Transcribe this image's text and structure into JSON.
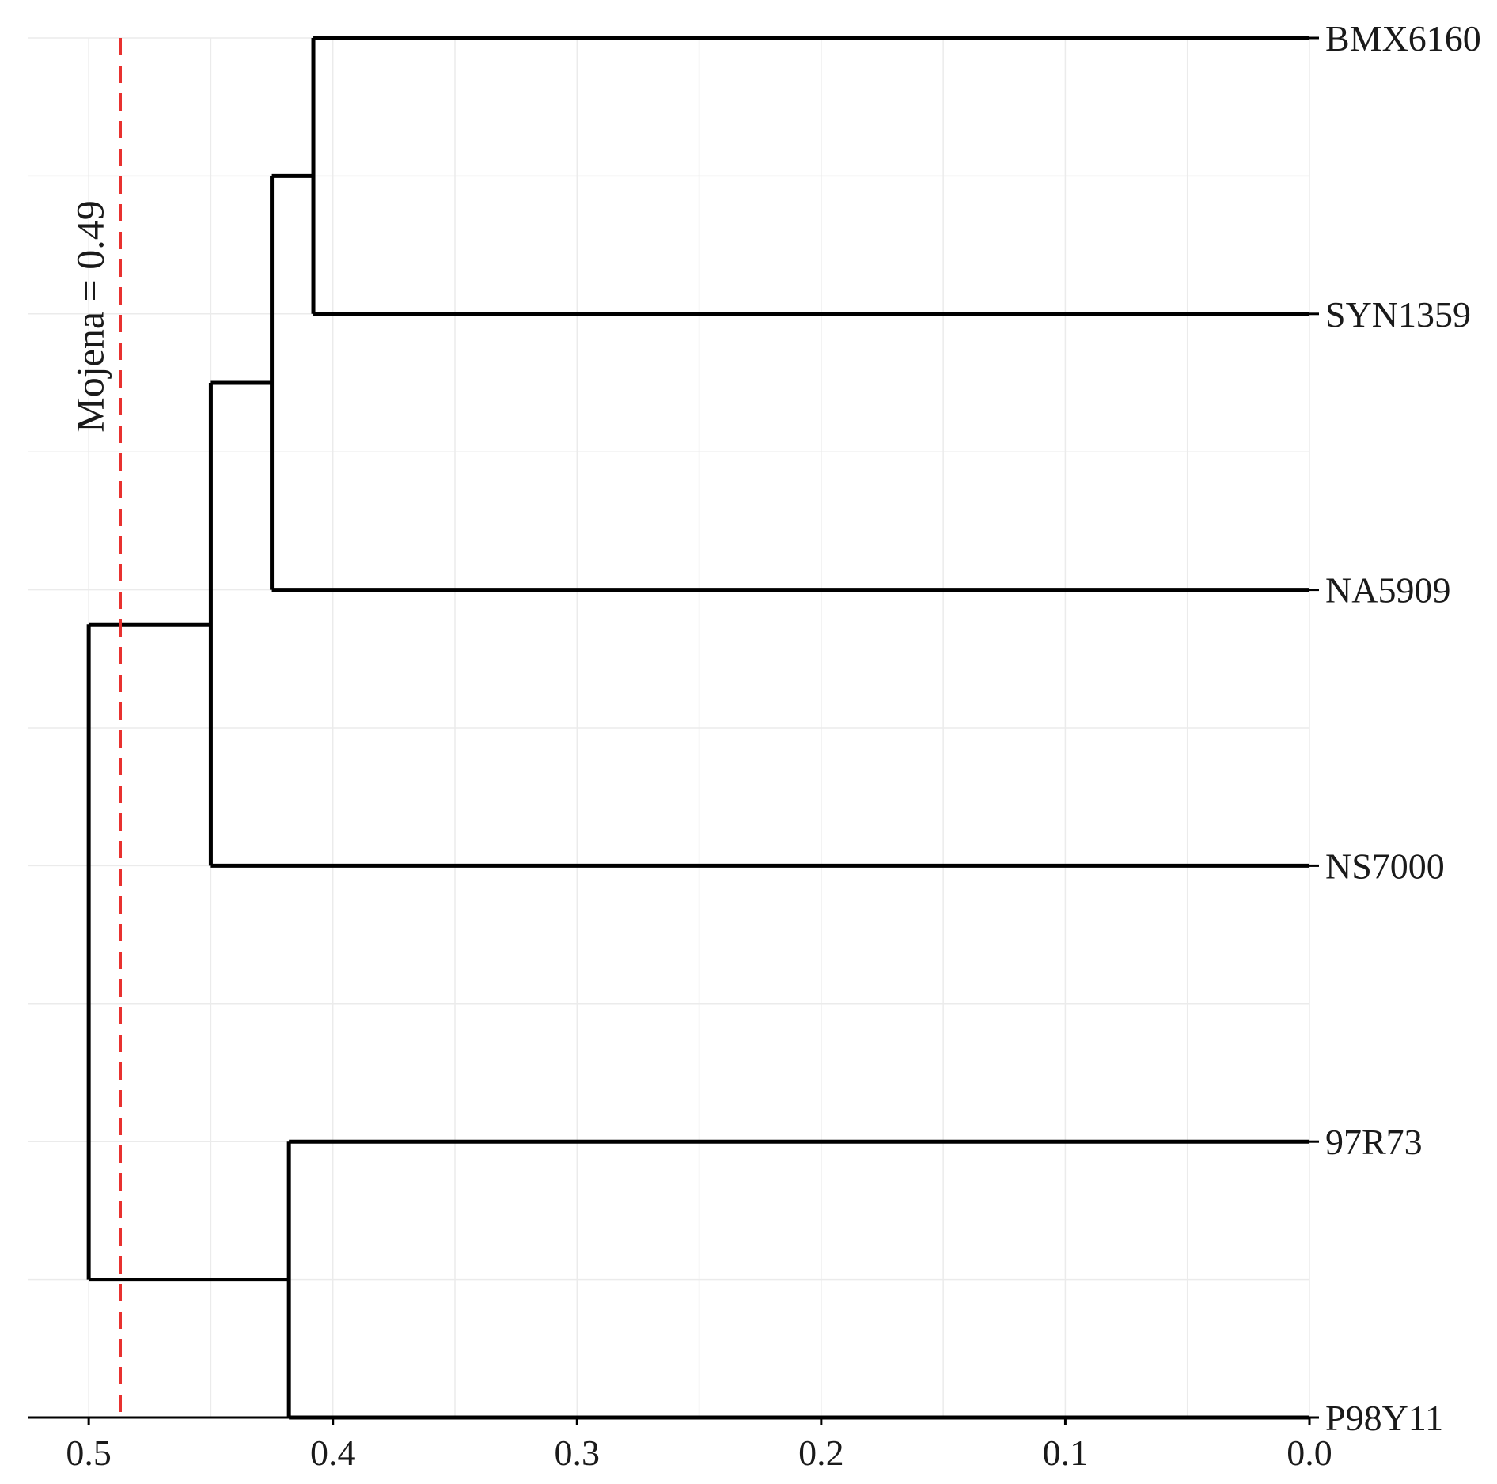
{
  "chart_data": {
    "type": "dendrogram",
    "orientation": "horizontal",
    "x_axis": {
      "ticks": [
        0.5,
        0.4,
        0.3,
        0.2,
        0.1,
        0.0
      ],
      "tick_labels": [
        "0.5",
        "0.4",
        "0.3",
        "0.2",
        "0.1",
        "0.0"
      ],
      "xlim": [
        0.525,
        0.0
      ],
      "reversed": true
    },
    "leaves": [
      "BMX6160",
      "SYN1359",
      "NA5909",
      "NS7000",
      "97R73",
      "P98Y11"
    ],
    "merges": [
      {
        "id": "c1",
        "left": "BMX6160",
        "right": "SYN1359",
        "height": 0.408
      },
      {
        "id": "c2",
        "left": "c1",
        "right": "NA5909",
        "height": 0.425
      },
      {
        "id": "c3",
        "left": "c2",
        "right": "NS7000",
        "height": 0.45
      },
      {
        "id": "c4",
        "left": "97R73",
        "right": "P98Y11",
        "height": 0.418
      },
      {
        "id": "c5",
        "left": "c3",
        "right": "c4",
        "height": 0.5
      }
    ],
    "cutoff": {
      "label": "Mojena = 0.49",
      "value": 0.487,
      "color": "#e8312f",
      "style": "dashed"
    },
    "grid": true,
    "grid_color": "#ebebeb",
    "line_color": "#000000"
  }
}
